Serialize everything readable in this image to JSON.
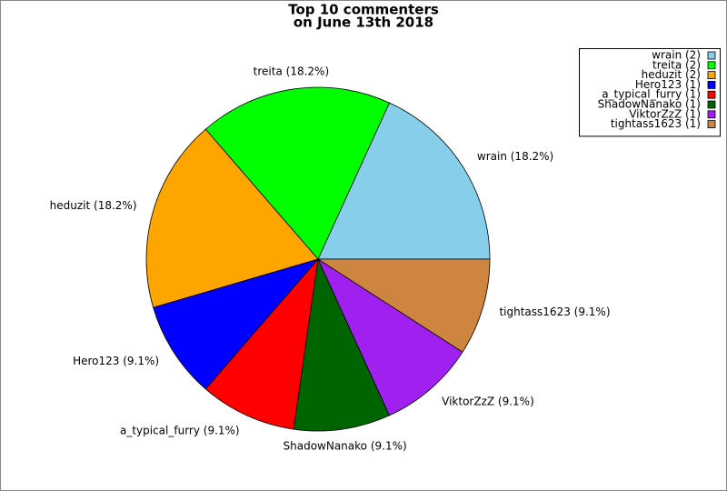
{
  "chart_data": {
    "type": "pie",
    "title": "Top 10 commenters",
    "subtitle": "on June 13th 2018",
    "values": [
      2,
      2,
      2,
      1,
      1,
      1,
      1,
      1
    ],
    "value_labels": [
      "wrain (2)",
      "treita (2)",
      "heduzit (2)",
      "Hero123 (1)",
      "a_typical_furry (1)",
      "ShadowNanako (1)",
      "ViktorZzZ (1)",
      "tightass1623 (1)"
    ],
    "slice_labels": [
      "wrain (18.2%)",
      "treita (18.2%)",
      "heduzit (18.2%)",
      "Hero123 (9.1%)",
      "a_typical_furry (9.1%)",
      "ShadowNanako (9.1%)",
      "ViktorZzZ (9.1%)",
      "tightass1623 (9.1%)"
    ],
    "colors": [
      "#87ceeb",
      "#00ff00",
      "#ffa500",
      "#0000ff",
      "#ff0000",
      "#006400",
      "#a020f0",
      "#cd853f"
    ],
    "legend": "upper right"
  }
}
